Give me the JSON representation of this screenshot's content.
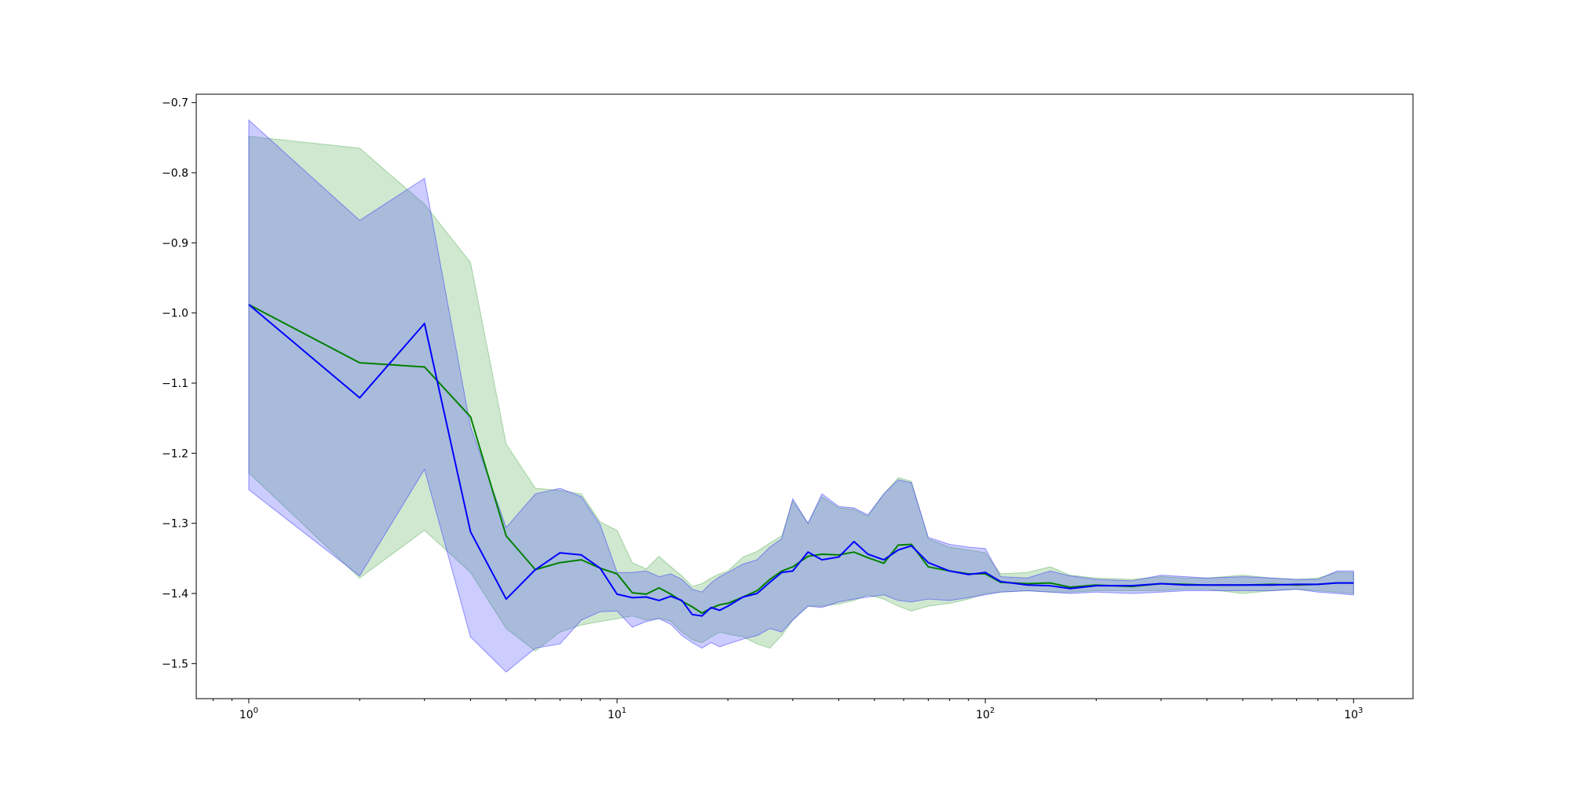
{
  "chart_data": {
    "type": "line",
    "title": "",
    "xlabel": "",
    "ylabel": "",
    "x_scale": "log",
    "xlim": [
      0.72,
      1450
    ],
    "ylim": [
      -1.55,
      -0.688
    ],
    "x_ticks": [
      {
        "value": 1,
        "base": "10",
        "exp": "0"
      },
      {
        "value": 10,
        "base": "10",
        "exp": "1"
      },
      {
        "value": 100,
        "base": "10",
        "exp": "2"
      },
      {
        "value": 1000,
        "base": "10",
        "exp": "3"
      }
    ],
    "y_ticks": [
      {
        "value": -0.7,
        "label": "−0.7"
      },
      {
        "value": -0.8,
        "label": "−0.8"
      },
      {
        "value": -0.9,
        "label": "−0.9"
      },
      {
        "value": -1.0,
        "label": "−1.0"
      },
      {
        "value": -1.1,
        "label": "−1.1"
      },
      {
        "value": -1.2,
        "label": "−1.2"
      },
      {
        "value": -1.3,
        "label": "−1.3"
      },
      {
        "value": -1.4,
        "label": "−1.4"
      },
      {
        "value": -1.5,
        "label": "−1.5"
      }
    ],
    "grid": false,
    "legend": "none",
    "series": [
      {
        "color": "#008000",
        "band_color": "#5fb35f",
        "band_opacity": 0.3,
        "x": [
          1,
          2,
          3,
          4,
          5,
          6,
          7,
          8,
          9,
          10,
          11,
          12,
          13,
          14,
          15,
          16,
          17,
          18,
          19,
          20,
          22,
          24,
          26,
          28,
          30,
          33,
          36,
          40,
          44,
          48,
          53,
          58,
          63,
          70,
          80,
          90,
          100,
          110,
          130,
          150,
          170,
          200,
          250,
          300,
          350,
          400,
          500,
          600,
          700,
          800,
          900,
          1000
        ],
        "y": [
          -0.988,
          -1.071,
          -1.077,
          -1.148,
          -1.318,
          -1.366,
          -1.356,
          -1.352,
          -1.364,
          -1.372,
          -1.399,
          -1.401,
          -1.392,
          -1.401,
          -1.411,
          -1.419,
          -1.428,
          -1.421,
          -1.416,
          -1.414,
          -1.405,
          -1.396,
          -1.38,
          -1.368,
          -1.362,
          -1.347,
          -1.344,
          -1.345,
          -1.341,
          -1.349,
          -1.357,
          -1.331,
          -1.33,
          -1.362,
          -1.368,
          -1.372,
          -1.372,
          -1.384,
          -1.386,
          -1.385,
          -1.391,
          -1.388,
          -1.39,
          -1.386,
          -1.387,
          -1.388,
          -1.388,
          -1.387,
          -1.388,
          -1.387,
          -1.385,
          -1.385
        ],
        "lower": [
          -1.228,
          -1.378,
          -1.31,
          -1.37,
          -1.45,
          -1.482,
          -1.455,
          -1.445,
          -1.44,
          -1.436,
          -1.432,
          -1.438,
          -1.435,
          -1.44,
          -1.455,
          -1.466,
          -1.47,
          -1.462,
          -1.455,
          -1.458,
          -1.462,
          -1.472,
          -1.478,
          -1.46,
          -1.438,
          -1.418,
          -1.418,
          -1.415,
          -1.41,
          -1.402,
          -1.408,
          -1.418,
          -1.425,
          -1.418,
          -1.414,
          -1.408,
          -1.4,
          -1.398,
          -1.396,
          -1.398,
          -1.398,
          -1.396,
          -1.396,
          -1.396,
          -1.394,
          -1.394,
          -1.4,
          -1.396,
          -1.394,
          -1.396,
          -1.398,
          -1.4
        ],
        "upper": [
          -0.748,
          -0.765,
          -0.845,
          -0.928,
          -1.187,
          -1.25,
          -1.253,
          -1.258,
          -1.298,
          -1.31,
          -1.356,
          -1.365,
          -1.347,
          -1.362,
          -1.375,
          -1.39,
          -1.386,
          -1.378,
          -1.372,
          -1.368,
          -1.348,
          -1.34,
          -1.328,
          -1.318,
          -1.268,
          -1.3,
          -1.262,
          -1.278,
          -1.28,
          -1.29,
          -1.258,
          -1.235,
          -1.24,
          -1.322,
          -1.334,
          -1.338,
          -1.342,
          -1.372,
          -1.37,
          -1.362,
          -1.374,
          -1.378,
          -1.38,
          -1.376,
          -1.378,
          -1.378,
          -1.374,
          -1.378,
          -1.38,
          -1.378,
          -1.37,
          -1.37
        ]
      },
      {
        "color": "#0000ff",
        "band_color": "#3333ff",
        "band_opacity": 0.25,
        "x": [
          1,
          2,
          3,
          4,
          5,
          6,
          7,
          8,
          9,
          10,
          11,
          12,
          13,
          14,
          15,
          16,
          17,
          18,
          19,
          20,
          22,
          24,
          26,
          28,
          30,
          33,
          36,
          40,
          44,
          48,
          53,
          58,
          63,
          70,
          80,
          90,
          100,
          110,
          130,
          150,
          170,
          200,
          250,
          300,
          350,
          400,
          500,
          600,
          700,
          800,
          900,
          1000
        ],
        "y": [
          -0.988,
          -1.121,
          -1.015,
          -1.312,
          -1.408,
          -1.366,
          -1.342,
          -1.345,
          -1.364,
          -1.401,
          -1.406,
          -1.405,
          -1.41,
          -1.404,
          -1.41,
          -1.43,
          -1.432,
          -1.42,
          -1.424,
          -1.418,
          -1.405,
          -1.4,
          -1.384,
          -1.37,
          -1.368,
          -1.341,
          -1.352,
          -1.348,
          -1.326,
          -1.344,
          -1.352,
          -1.338,
          -1.332,
          -1.356,
          -1.368,
          -1.373,
          -1.37,
          -1.383,
          -1.388,
          -1.389,
          -1.393,
          -1.389,
          -1.389,
          -1.386,
          -1.388,
          -1.388,
          -1.388,
          -1.388,
          -1.387,
          -1.387,
          -1.385,
          -1.385
        ],
        "lower": [
          -1.252,
          -1.375,
          -1.223,
          -1.462,
          -1.512,
          -1.478,
          -1.472,
          -1.438,
          -1.426,
          -1.425,
          -1.448,
          -1.44,
          -1.436,
          -1.444,
          -1.46,
          -1.47,
          -1.478,
          -1.47,
          -1.476,
          -1.472,
          -1.465,
          -1.46,
          -1.45,
          -1.455,
          -1.438,
          -1.418,
          -1.42,
          -1.412,
          -1.408,
          -1.405,
          -1.402,
          -1.41,
          -1.412,
          -1.408,
          -1.41,
          -1.406,
          -1.402,
          -1.398,
          -1.396,
          -1.398,
          -1.4,
          -1.398,
          -1.4,
          -1.398,
          -1.396,
          -1.396,
          -1.396,
          -1.396,
          -1.394,
          -1.398,
          -1.4,
          -1.402
        ],
        "upper": [
          -0.725,
          -0.868,
          -0.808,
          -1.162,
          -1.306,
          -1.258,
          -1.25,
          -1.262,
          -1.302,
          -1.37,
          -1.37,
          -1.368,
          -1.376,
          -1.372,
          -1.38,
          -1.394,
          -1.398,
          -1.385,
          -1.376,
          -1.37,
          -1.358,
          -1.352,
          -1.334,
          -1.322,
          -1.265,
          -1.3,
          -1.258,
          -1.276,
          -1.278,
          -1.288,
          -1.258,
          -1.238,
          -1.242,
          -1.32,
          -1.33,
          -1.334,
          -1.336,
          -1.376,
          -1.378,
          -1.368,
          -1.375,
          -1.38,
          -1.382,
          -1.374,
          -1.376,
          -1.378,
          -1.376,
          -1.378,
          -1.38,
          -1.38,
          -1.368,
          -1.368
        ]
      }
    ]
  }
}
